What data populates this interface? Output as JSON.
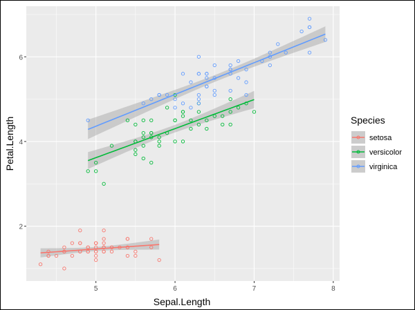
{
  "chart_data": {
    "type": "scatter",
    "xlabel": "Sepal.Length",
    "ylabel": "Petal.Length",
    "xlim": [
      4.12,
      8.08
    ],
    "ylim": [
      0.705,
      7.195
    ],
    "x_ticks": [
      "5",
      "6",
      "7",
      "8"
    ],
    "y_ticks": [
      "2",
      "4",
      "6"
    ],
    "grid": true,
    "smooth": "lm with 95% confidence band",
    "legend": {
      "title": "Species",
      "placement": "right"
    },
    "series": [
      {
        "name": "setosa",
        "color": "#F8766D",
        "x": [
          5.1,
          4.9,
          4.7,
          4.6,
          5.0,
          5.4,
          4.6,
          5.0,
          4.4,
          4.9,
          5.4,
          4.8,
          4.8,
          4.3,
          5.8,
          5.7,
          5.4,
          5.1,
          5.7,
          5.1,
          5.4,
          5.1,
          4.6,
          5.1,
          4.8,
          5.0,
          5.0,
          5.2,
          5.2,
          4.7,
          4.8,
          5.4,
          5.2,
          5.5,
          4.9,
          5.0,
          5.5,
          4.9,
          4.4,
          5.1,
          5.0,
          4.5,
          4.4,
          5.0,
          5.1,
          4.8,
          5.1,
          4.6,
          5.3,
          5.0
        ],
        "y": [
          1.4,
          1.4,
          1.3,
          1.5,
          1.4,
          1.7,
          1.4,
          1.5,
          1.4,
          1.5,
          1.5,
          1.6,
          1.4,
          1.1,
          1.2,
          1.5,
          1.3,
          1.4,
          1.7,
          1.5,
          1.7,
          1.5,
          1.0,
          1.7,
          1.9,
          1.6,
          1.6,
          1.5,
          1.4,
          1.6,
          1.6,
          1.5,
          1.5,
          1.4,
          1.5,
          1.2,
          1.3,
          1.4,
          1.3,
          1.5,
          1.3,
          1.3,
          1.3,
          1.6,
          1.9,
          1.4,
          1.6,
          1.4,
          1.5,
          1.4
        ]
      },
      {
        "name": "versicolor",
        "color": "#00BA38",
        "x": [
          7.0,
          6.4,
          6.9,
          5.5,
          6.5,
          5.7,
          6.3,
          4.9,
          6.6,
          5.2,
          5.0,
          5.9,
          6.0,
          6.1,
          5.6,
          6.7,
          5.6,
          5.8,
          6.2,
          5.6,
          5.9,
          6.1,
          6.3,
          6.1,
          6.4,
          6.6,
          6.8,
          6.7,
          6.0,
          5.7,
          5.5,
          5.5,
          5.8,
          6.0,
          5.4,
          6.0,
          6.7,
          6.3,
          5.6,
          5.5,
          5.5,
          6.1,
          5.8,
          5.0,
          5.6,
          5.7,
          5.7,
          6.2,
          5.1,
          5.7
        ],
        "y": [
          4.7,
          4.5,
          4.9,
          4.0,
          4.6,
          4.5,
          4.7,
          3.3,
          4.6,
          3.9,
          3.5,
          4.2,
          4.0,
          4.7,
          3.6,
          4.4,
          4.5,
          4.1,
          4.5,
          3.9,
          4.8,
          4.0,
          4.9,
          4.7,
          4.3,
          4.4,
          4.8,
          5.0,
          4.5,
          3.5,
          3.8,
          3.7,
          3.9,
          5.1,
          4.5,
          4.5,
          4.7,
          4.4,
          4.1,
          4.0,
          4.4,
          4.6,
          4.0,
          3.3,
          4.2,
          4.2,
          4.2,
          4.3,
          3.0,
          4.1
        ]
      },
      {
        "name": "virginica",
        "color": "#619CFF",
        "x": [
          6.3,
          5.8,
          7.1,
          6.3,
          6.5,
          7.6,
          4.9,
          7.3,
          6.7,
          7.2,
          6.5,
          6.4,
          6.8,
          5.7,
          5.8,
          6.4,
          6.5,
          7.7,
          7.7,
          6.0,
          6.9,
          5.6,
          7.7,
          6.3,
          6.7,
          7.2,
          6.2,
          6.1,
          6.4,
          7.2,
          7.4,
          7.9,
          6.4,
          6.3,
          6.1,
          7.7,
          6.3,
          6.4,
          6.0,
          6.9,
          6.7,
          6.9,
          5.8,
          6.8,
          6.7,
          6.7,
          6.3,
          6.5,
          6.2,
          5.9
        ],
        "y": [
          6.0,
          5.1,
          5.9,
          5.6,
          5.8,
          6.6,
          4.5,
          6.3,
          5.8,
          6.1,
          5.1,
          5.3,
          5.5,
          5.0,
          5.1,
          5.3,
          5.5,
          6.7,
          6.9,
          5.0,
          5.7,
          4.9,
          6.7,
          4.9,
          5.7,
          6.0,
          4.8,
          4.9,
          5.6,
          5.8,
          6.1,
          6.4,
          5.6,
          5.1,
          5.6,
          6.1,
          5.6,
          5.5,
          4.8,
          5.4,
          5.6,
          5.1,
          5.1,
          5.9,
          5.7,
          5.2,
          5.0,
          5.2,
          5.4,
          5.1
        ]
      }
    ]
  }
}
